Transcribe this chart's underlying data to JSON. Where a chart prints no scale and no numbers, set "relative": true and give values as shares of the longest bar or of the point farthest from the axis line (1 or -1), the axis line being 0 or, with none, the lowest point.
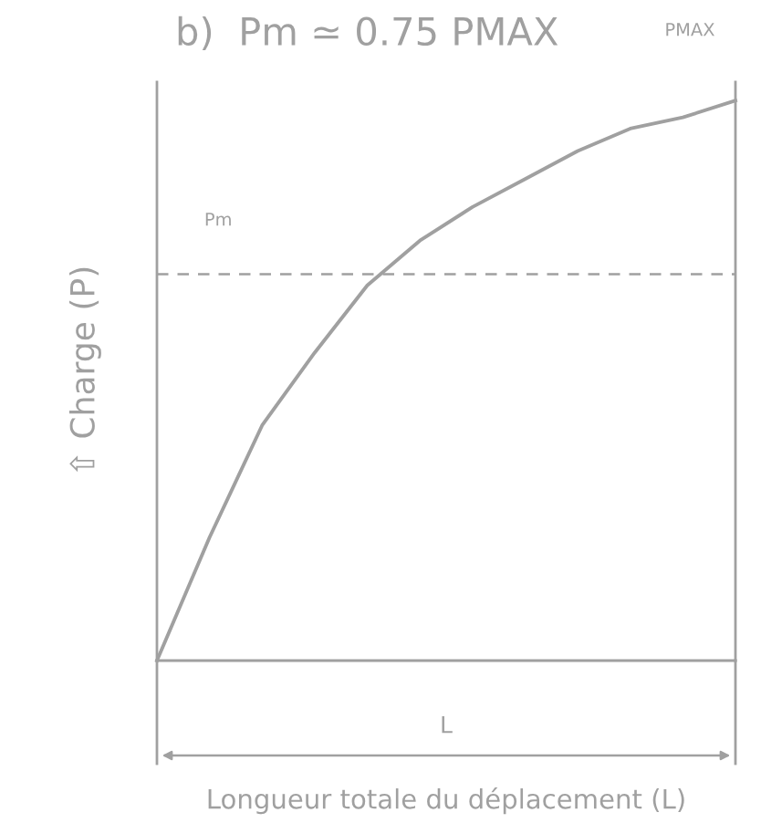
{
  "chart_data": {
    "type": "line",
    "title": "b)  Pm ≃ 0.75 PMAX",
    "xlabel": "Longueur totale du déplacement (L)",
    "ylabel": "⇧ Charge (P)",
    "relative": true,
    "categories": [
      null,
      null,
      null,
      null,
      null,
      null,
      null,
      null,
      null,
      null,
      null,
      null
    ],
    "series": [
      {
        "color": "#a0a0a0",
        "values": [
          0,
          0.22,
          0.42,
          0.55,
          0.67,
          0.75,
          0.81,
          0.86,
          0.91,
          0.95,
          0.97,
          1
        ]
      }
    ],
    "ref_lines": [
      {
        "axis": "y",
        "value": 0.69,
        "label": "Pm",
        "line_style": "dashed",
        "color": "#a0a0a0"
      }
    ],
    "annotations": [
      "PMAX",
      "L"
    ],
    "legend": false,
    "marker": "none",
    "line_style": "solid"
  }
}
